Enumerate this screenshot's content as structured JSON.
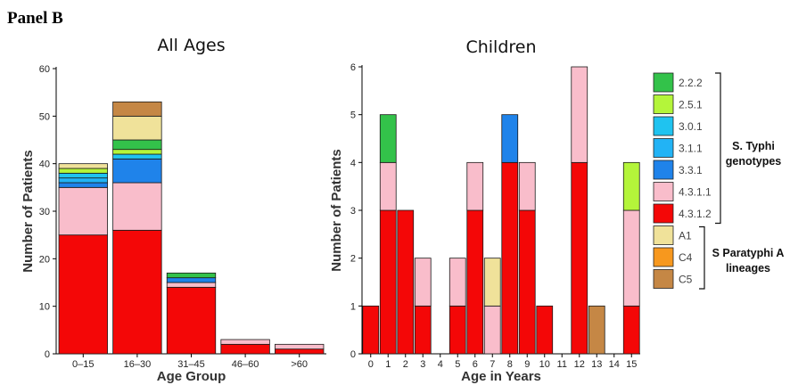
{
  "panel_label": "Panel B",
  "colors": {
    "2.2.2": "#33c24a",
    "2.5.1": "#b4f53a",
    "3.0.1": "#1fc3f0",
    "3.1.1": "#22b3f5",
    "3.3.1": "#1f83ea",
    "4.3.1.1": "#f9bdcb",
    "4.3.1.2": "#f40707",
    "A1": "#f0e29a",
    "C4": "#f7981e",
    "C5": "#c58745"
  },
  "legend": {
    "typhi": [
      "2.2.2",
      "2.5.1",
      "3.0.1",
      "3.1.1",
      "3.3.1",
      "4.3.1.1",
      "4.3.1.2"
    ],
    "paratyphi": [
      "A1",
      "C4",
      "C5"
    ],
    "typhi_group_label": [
      "S. Typhi",
      "genotypes"
    ],
    "paratyphi_group_label": [
      "S Paratyphi A",
      "lineages"
    ]
  },
  "chart_data": [
    {
      "type": "bar",
      "stacked": true,
      "title": "All Ages",
      "xlabel": "Age Group",
      "ylabel": "Number of Patients",
      "ylim": [
        0,
        60
      ],
      "yticks": [
        0,
        10,
        20,
        30,
        40,
        50,
        60
      ],
      "categories": [
        "0–15",
        "16–30",
        "31–45",
        "46–60",
        ">60"
      ],
      "series": [
        {
          "name": "4.3.1.2",
          "values": [
            25,
            26,
            14,
            2,
            1
          ]
        },
        {
          "name": "4.3.1.1",
          "values": [
            10,
            10,
            1,
            1,
            1
          ]
        },
        {
          "name": "3.3.1",
          "values": [
            1,
            5,
            1,
            0,
            0
          ]
        },
        {
          "name": "3.1.1",
          "values": [
            1,
            0,
            0,
            0,
            0
          ]
        },
        {
          "name": "3.0.1",
          "values": [
            1,
            1,
            0,
            0,
            0
          ]
        },
        {
          "name": "2.5.1",
          "values": [
            1,
            1,
            0,
            0,
            0
          ]
        },
        {
          "name": "2.2.2",
          "values": [
            0,
            2,
            1,
            0,
            0
          ]
        },
        {
          "name": "A1",
          "values": [
            1,
            5,
            0,
            0,
            0
          ]
        },
        {
          "name": "C4",
          "values": [
            0,
            0,
            0,
            0,
            0
          ]
        },
        {
          "name": "C5",
          "values": [
            0,
            3,
            0,
            0,
            0
          ]
        }
      ]
    },
    {
      "type": "bar",
      "stacked": true,
      "title": "Children",
      "xlabel": "Age in Years",
      "ylabel": "Number of Patients",
      "ylim": [
        0,
        6
      ],
      "yticks": [
        0,
        1,
        2,
        3,
        4,
        5,
        6
      ],
      "categories": [
        "0",
        "1",
        "2",
        "3",
        "4",
        "5",
        "6",
        "7",
        "8",
        "9",
        "10",
        "11",
        "12",
        "13",
        "14",
        "15"
      ],
      "series": [
        {
          "name": "4.3.1.2",
          "values": [
            1,
            3,
            3,
            1,
            0,
            1,
            3,
            0,
            4,
            3,
            1,
            0,
            4,
            0,
            0,
            1
          ]
        },
        {
          "name": "4.3.1.1",
          "values": [
            0,
            1,
            0,
            1,
            0,
            1,
            1,
            1,
            0,
            1,
            0,
            0,
            2,
            0,
            0,
            2
          ]
        },
        {
          "name": "3.3.1",
          "values": [
            0,
            0,
            0,
            0,
            0,
            0,
            0,
            0,
            1,
            0,
            0,
            0,
            0,
            0,
            0,
            0
          ]
        },
        {
          "name": "2.5.1",
          "values": [
            0,
            0,
            0,
            0,
            0,
            0,
            0,
            0,
            0,
            0,
            0,
            0,
            0,
            0,
            0,
            1
          ]
        },
        {
          "name": "2.2.2",
          "values": [
            0,
            1,
            0,
            0,
            0,
            0,
            0,
            0,
            0,
            0,
            0,
            0,
            0,
            0,
            0,
            0
          ]
        },
        {
          "name": "A1",
          "values": [
            0,
            0,
            0,
            0,
            0,
            0,
            0,
            1,
            0,
            0,
            0,
            0,
            0,
            0,
            0,
            0
          ]
        },
        {
          "name": "C5",
          "values": [
            0,
            0,
            0,
            0,
            0,
            0,
            0,
            0,
            0,
            0,
            0,
            0,
            0,
            1,
            0,
            0
          ]
        }
      ]
    }
  ]
}
